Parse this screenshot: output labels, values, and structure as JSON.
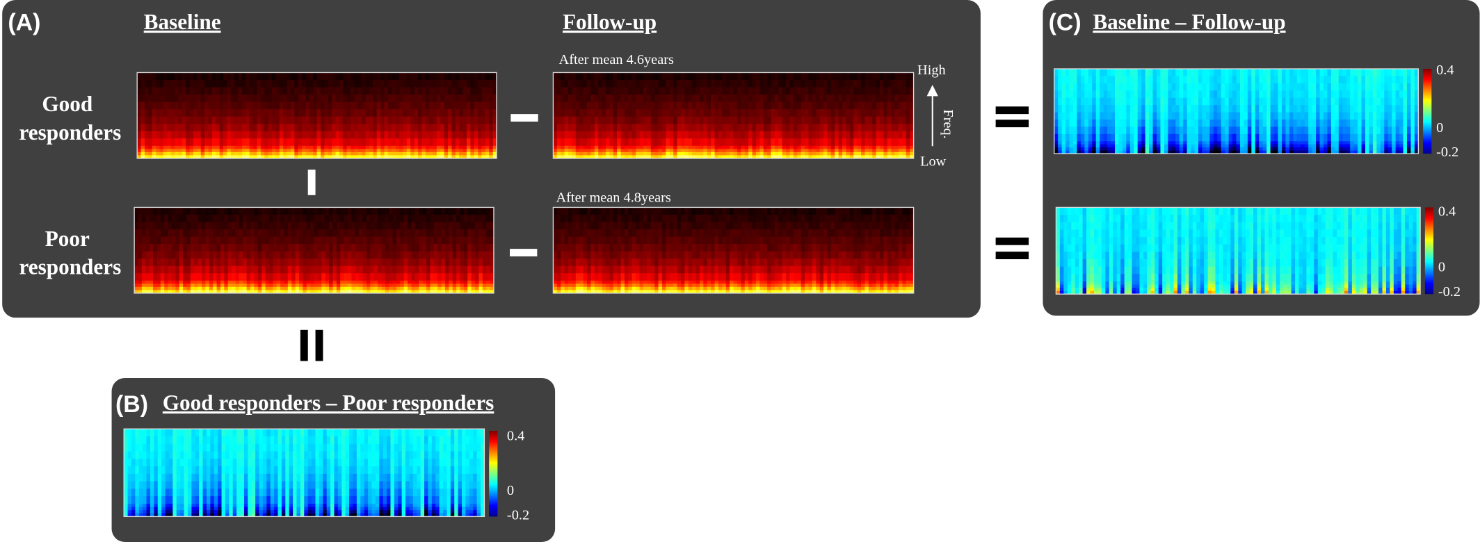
{
  "panel_a": {
    "label": "(A)",
    "baseline": "Baseline",
    "followup": "Follow-up",
    "rows": [
      {
        "label_line1": "Good",
        "label_line2": "responders",
        "note": "After mean 4.6years"
      },
      {
        "label_line1": "Poor",
        "label_line2": "responders",
        "note": "After mean 4.8years"
      }
    ],
    "freq_axis": {
      "high": "High",
      "label": "Freq.",
      "low": "Low"
    }
  },
  "panel_b": {
    "label": "(B)",
    "title": "Good responders – Poor responders",
    "colorbar": [
      "0.4",
      "0",
      "-0.2"
    ]
  },
  "panel_c": {
    "label": "(C)",
    "title": "Baseline – Follow-up",
    "colorbars": [
      [
        "0.4",
        "0",
        "-0.2"
      ],
      [
        "0.4",
        "0",
        "-0.2"
      ]
    ]
  }
}
